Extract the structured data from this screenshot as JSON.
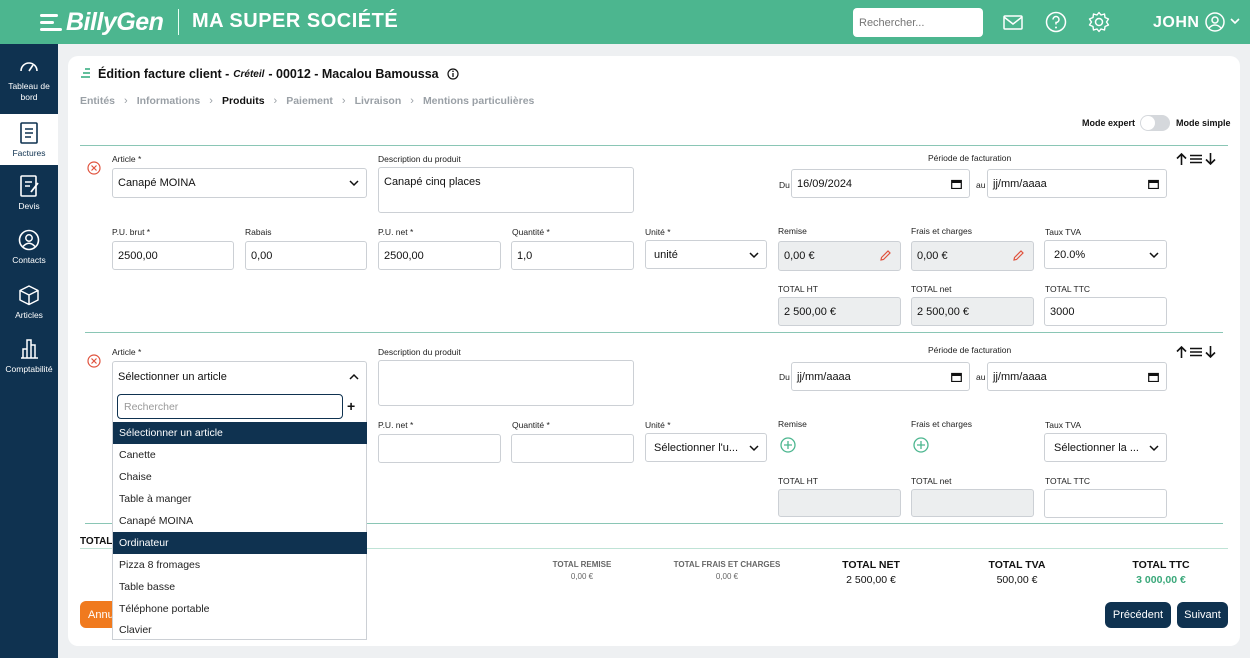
{
  "header": {
    "logo": "BillyGen",
    "company": "MA SUPER SOCIÉTÉ",
    "search_placeholder": "Rechercher...",
    "user": "JOHN",
    "icons": [
      "mail-icon",
      "help-icon",
      "gear-icon",
      "user-circle-icon",
      "chevron-down-icon"
    ]
  },
  "sidebar": {
    "items": [
      {
        "label_1": "Tableau de",
        "label_2": "bord",
        "icon": "gauge-icon"
      },
      {
        "label": "Factures",
        "icon": "invoice-icon",
        "active": true
      },
      {
        "label": "Devis",
        "icon": "quote-icon"
      },
      {
        "label": "Contacts",
        "icon": "contact-icon"
      },
      {
        "label": "Articles",
        "icon": "box-icon"
      },
      {
        "label": "Comptabilité",
        "icon": "chart-icon"
      }
    ]
  },
  "page": {
    "title": "Édition facture client - ",
    "title_city": "Créteil",
    "title_rest": " - 00012 - Macalou Bamoussa",
    "breadcrumbs": [
      "Entités",
      "Informations",
      "Produits",
      "Paiement",
      "Livraison",
      "Mentions particulières"
    ],
    "active_crumb": "Produits",
    "mode_expert": "Mode expert",
    "mode_simple": "Mode simple"
  },
  "labels": {
    "article": "Article *",
    "description": "Description du produit",
    "periode": "Période de facturation",
    "du": "Du",
    "au": "au",
    "pu_brut": "P.U. brut *",
    "rabais": "Rabais",
    "pu_net": "P.U. net *",
    "quantite": "Quantité *",
    "unite": "Unité *",
    "remise": "Remise",
    "frais": "Frais et charges",
    "taux_tva": "Taux TVA",
    "total_ht": "TOTAL HT",
    "total_net": "TOTAL net",
    "total_ttc": "TOTAL TTC"
  },
  "line1": {
    "article": "Canapé MOINA",
    "description": "Canapé cinq places",
    "date_du": "16/09/2024",
    "date_au": "jj/mm/aaaa",
    "pu_brut": "2500,00",
    "rabais": "0,00",
    "pu_net": "2500,00",
    "quantite": "1,0",
    "unite": "unité",
    "remise": "0,00 €",
    "frais": "0,00 €",
    "taux_tva": "20.0%",
    "total_ht": "2 500,00 €",
    "total_net": "2 500,00 €",
    "total_ttc": "3000"
  },
  "line2": {
    "article": "Sélectionner un article",
    "date_du": "jj/mm/aaaa",
    "date_au": "jj/mm/aaaa",
    "unite": "Sélectionner l'u...",
    "taux_tva": "Sélectionner la ..."
  },
  "dropdown": {
    "search_placeholder": "Rechercher",
    "options": [
      "Sélectionner un article",
      "Canette",
      "Chaise",
      "Table à manger",
      "Canapé MOINA",
      "Ordinateur",
      "Pizza 8 fromages",
      "Table basse",
      "Téléphone portable",
      "Clavier"
    ],
    "selected": "Sélectionner un article",
    "hovered": "Ordinateur"
  },
  "summary": {
    "totals_label": "TOTAL",
    "remise_label": "TOTAL REMISE",
    "remise_value": "0,00 €",
    "frais_label": "TOTAL FRAIS ET CHARGES",
    "frais_value": "0,00 €",
    "net_label": "TOTAL NET",
    "net_value": "2 500,00 €",
    "tva_label": "TOTAL TVA",
    "tva_value": "500,00 €",
    "ttc_label": "TOTAL TTC",
    "ttc_value": "3 000,00 €"
  },
  "buttons": {
    "annuler": "Annuler",
    "precedent": "Précédent",
    "suivant": "Suivant"
  },
  "colors": {
    "brand_green": "#4cb68f",
    "navy": "#0f3250",
    "orange": "#f07a1e",
    "ttc_green": "#3aa87a"
  }
}
